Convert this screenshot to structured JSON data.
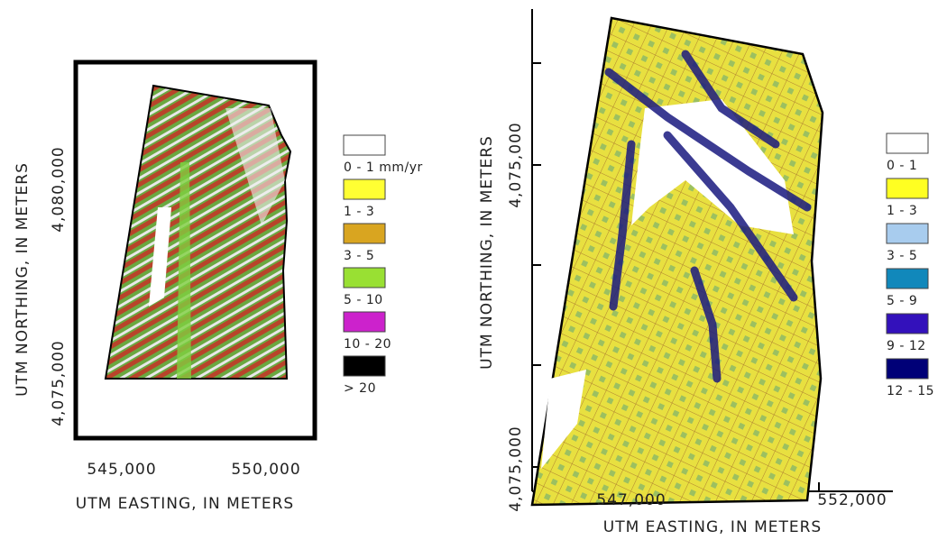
{
  "left_map": {
    "y_axis_label": "UTM NORTHING, IN METERS",
    "y_tick_labels": [
      "4,080,000",
      "4,075,000"
    ],
    "x_tick_labels": [
      "545,000",
      "550,000"
    ],
    "x_axis_label": "UTM EASTING, IN METERS",
    "legend": [
      {
        "label": "0 - 1 mm/yr",
        "color": "#ffffff"
      },
      {
        "label": "1 - 3",
        "color": "#ffff33"
      },
      {
        "label": "3 - 5",
        "color": "#d9a520"
      },
      {
        "label": "5 - 10",
        "color": "#99e033"
      },
      {
        "label": "10 - 20",
        "color": "#cc22cc"
      },
      {
        "label": "> 20",
        "color": "#000000"
      }
    ]
  },
  "right_map": {
    "y_axis_label": "UTM NORTHING, IN METERS",
    "y_tick_labels": [
      "4,075,000",
      "4,075,000"
    ],
    "x_tick_labels": [
      "547,000",
      "552,000"
    ],
    "x_axis_label": "UTM EASTING, IN METERS",
    "legend": [
      {
        "label": "0 - 1",
        "color": "#ffffff"
      },
      {
        "label": "1 - 3",
        "color": "#ffff22"
      },
      {
        "label": "3 - 5",
        "color": "#a8ccee"
      },
      {
        "label": "5 - 9",
        "color": "#1188bb"
      },
      {
        "label": "9 - 12",
        "color": "#3311bb"
      },
      {
        "label": "12 - 15",
        "color": "#000077"
      }
    ]
  }
}
